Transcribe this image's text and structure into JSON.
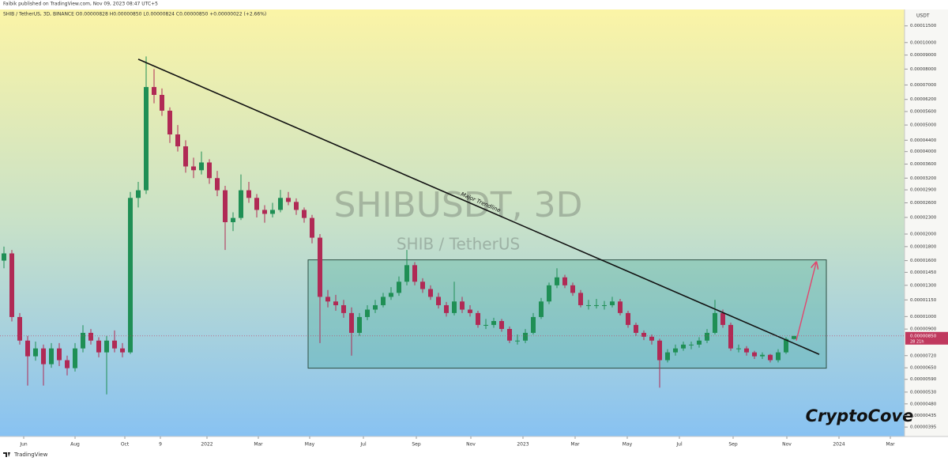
{
  "chart_data": {
    "type": "candlestick",
    "publisher": "Faibik published on TradingView.com, Nov 09, 2023 08:47 UTC+5",
    "legend": "SHIB / TetherUS, 3D, BINANCE O0.00000828 H0.00000850 L0.00000824 C0.00000850 +0.00000022 (+2.66%)",
    "watermark": "SHIBUSDT, 3D",
    "watermark_sub": "SHIB / TetherUS",
    "brand": "CryptoCove",
    "logo": "TradingView",
    "y_axis_unit": "USDT",
    "log_scale": true,
    "up_color": "#1f8f55",
    "down_color": "#b02a55",
    "xlim": [
      -0.5,
      114
    ],
    "ylim": [
      3.65e-06,
      0.000132
    ],
    "xticks": [
      {
        "value": 2.5,
        "label": "Jun"
      },
      {
        "value": 9,
        "label": "Aug"
      },
      {
        "value": 15.3,
        "label": "Oct"
      },
      {
        "value": 19.8,
        "label": "9"
      },
      {
        "value": 25.7,
        "label": "2022"
      },
      {
        "value": 32.2,
        "label": "Mar"
      },
      {
        "value": 38.7,
        "label": "May"
      },
      {
        "value": 45.5,
        "label": "Jul"
      },
      {
        "value": 52.2,
        "label": "Sep"
      },
      {
        "value": 59.1,
        "label": "Nov"
      },
      {
        "value": 65.7,
        "label": "2023"
      },
      {
        "value": 72.3,
        "label": "Mar"
      },
      {
        "value": 78.9,
        "label": "May"
      },
      {
        "value": 85.5,
        "label": "Jul"
      },
      {
        "value": 92.3,
        "label": "Sep"
      },
      {
        "value": 99.1,
        "label": "Nov"
      },
      {
        "value": 105.7,
        "label": "2024"
      },
      {
        "value": 112.2,
        "label": "Mar"
      }
    ],
    "yticks": [
      {
        "value": 0.000115,
        "label": "0.00011500"
      },
      {
        "value": 0.0001,
        "label": "0.00010000"
      },
      {
        "value": 9e-05,
        "label": "0.00009000"
      },
      {
        "value": 8e-05,
        "label": "0.00008000"
      },
      {
        "value": 7e-05,
        "label": "0.00007000"
      },
      {
        "value": 6.2e-05,
        "label": "0.00006200"
      },
      {
        "value": 5.6e-05,
        "label": "0.00005600"
      },
      {
        "value": 5e-05,
        "label": "0.00005000"
      },
      {
        "value": 4.4e-05,
        "label": "0.00004400"
      },
      {
        "value": 4e-05,
        "label": "0.00004000"
      },
      {
        "value": 3.6e-05,
        "label": "0.00003600"
      },
      {
        "value": 3.2e-05,
        "label": "0.00003200"
      },
      {
        "value": 2.9e-05,
        "label": "0.00002900"
      },
      {
        "value": 2.6e-05,
        "label": "0.00002600"
      },
      {
        "value": 2.3e-05,
        "label": "0.00002300"
      },
      {
        "value": 2e-05,
        "label": "0.00002000"
      },
      {
        "value": 1.8e-05,
        "label": "0.00001800"
      },
      {
        "value": 1.6e-05,
        "label": "0.00001600"
      },
      {
        "value": 1.45e-05,
        "label": "0.00001450"
      },
      {
        "value": 1.3e-05,
        "label": "0.00001300"
      },
      {
        "value": 1.15e-05,
        "label": "0.00001150"
      },
      {
        "value": 1e-05,
        "label": "0.00001000"
      },
      {
        "value": 9e-06,
        "label": "0.00000900"
      },
      {
        "value": 7.2e-06,
        "label": "0.00000720"
      },
      {
        "value": 6.5e-06,
        "label": "0.00000650"
      },
      {
        "value": 5.9e-06,
        "label": "0.00000590"
      },
      {
        "value": 5.3e-06,
        "label": "0.00000530"
      },
      {
        "value": 4.8e-06,
        "label": "0.00000480"
      },
      {
        "value": 4.35e-06,
        "label": "0.00000435"
      },
      {
        "value": 3.95e-06,
        "label": "0.00000395"
      }
    ],
    "price_label": {
      "value": 8.5e-06,
      "label": "0.00000850"
    },
    "countdown": "28 21h",
    "trendline": {
      "label": "Major Trendline",
      "x": [
        17,
        103.2
      ],
      "y": [
        8.69e-05,
        7.28e-06
      ]
    },
    "range_box": {
      "x": [
        38.5,
        104.1
      ],
      "y": [
        1.61e-05,
        6.48e-06
      ]
    },
    "arrow": {
      "x": [
        100.3,
        102.8
      ],
      "y": [
        8.17e-06,
        1.57e-05
      ]
    },
    "ohlc": [
      [
        1.6e-05,
        1.8e-05,
        1.5e-05,
        1.7e-05
      ],
      [
        1.7e-05,
        1.75e-05,
        9.6e-06,
        9.96e-06
      ],
      [
        9.96e-06,
        1.03e-05,
        7.9e-06,
        8.17e-06
      ],
      [
        8.17e-06,
        8.5e-06,
        5.6e-06,
        7.16e-06
      ],
      [
        7.16e-06,
        8.1e-06,
        6.9e-06,
        7.65e-06
      ],
      [
        7.65e-06,
        7.9e-06,
        5.6e-06,
        6.7e-06
      ],
      [
        6.7e-06,
        8e-06,
        6.5e-06,
        7.65e-06
      ],
      [
        7.65e-06,
        8e-06,
        6.6e-06,
        6.93e-06
      ],
      [
        6.93e-06,
        7.2e-06,
        6.1e-06,
        6.48e-06
      ],
      [
        6.48e-06,
        8e-06,
        6.3e-06,
        7.65e-06
      ],
      [
        7.65e-06,
        9.3e-06,
        7.4e-06,
        8.72e-06
      ],
      [
        8.72e-06,
        9e-06,
        7.9e-06,
        8.17e-06
      ],
      [
        8.17e-06,
        8.4e-06,
        7.1e-06,
        7.4e-06
      ],
      [
        7.4e-06,
        8.5e-06,
        5.2e-06,
        8.17e-06
      ],
      [
        8.17e-06,
        8.9e-06,
        7.4e-06,
        7.65e-06
      ],
      [
        7.65e-06,
        8e-06,
        7.1e-06,
        7.4e-06
      ],
      [
        7.4e-06,
        2.85e-05,
        7.3e-06,
        2.71e-05
      ],
      [
        2.71e-05,
        3.1e-05,
        2.5e-05,
        2.89e-05
      ],
      [
        2.89e-05,
        8.9e-05,
        2.8e-05,
        6.88e-05
      ],
      [
        6.88e-05,
        8e-05,
        6e-05,
        6.44e-05
      ],
      [
        6.44e-05,
        6.8e-05,
        5.4e-05,
        5.64e-05
      ],
      [
        5.64e-05,
        5.8e-05,
        4.3e-05,
        4.62e-05
      ],
      [
        4.62e-05,
        5e-05,
        4e-05,
        4.18e-05
      ],
      [
        4.18e-05,
        4.4e-05,
        3.35e-05,
        3.53e-05
      ],
      [
        3.53e-05,
        3.8e-05,
        3.2e-05,
        3.42e-05
      ],
      [
        3.42e-05,
        4e-05,
        3.3e-05,
        3.65e-05
      ],
      [
        3.65e-05,
        3.75e-05,
        3.05e-05,
        3.2e-05
      ],
      [
        3.2e-05,
        3.4e-05,
        2.75e-05,
        2.89e-05
      ],
      [
        2.89e-05,
        3e-05,
        1.75e-05,
        2.21e-05
      ],
      [
        2.21e-05,
        2.4e-05,
        2.05e-05,
        2.29e-05
      ],
      [
        2.29e-05,
        3.3e-05,
        2.25e-05,
        2.89e-05
      ],
      [
        2.89e-05,
        3.1e-05,
        2.6e-05,
        2.71e-05
      ],
      [
        2.71e-05,
        2.8e-05,
        2.3e-05,
        2.45e-05
      ],
      [
        2.45e-05,
        2.55e-05,
        2.2e-05,
        2.37e-05
      ],
      [
        2.37e-05,
        2.6e-05,
        2.3e-05,
        2.45e-05
      ],
      [
        2.45e-05,
        2.9e-05,
        2.4e-05,
        2.71e-05
      ],
      [
        2.71e-05,
        2.85e-05,
        2.55e-05,
        2.62e-05
      ],
      [
        2.62e-05,
        2.7e-05,
        2.35e-05,
        2.45e-05
      ],
      [
        2.45e-05,
        2.5e-05,
        2.2e-05,
        2.29e-05
      ],
      [
        2.29e-05,
        2.35e-05,
        1.85e-05,
        1.94e-05
      ],
      [
        1.94e-05,
        2e-05,
        8e-06,
        1.18e-05
      ],
      [
        1.18e-05,
        1.25e-05,
        1.08e-05,
        1.135e-05
      ],
      [
        1.135e-05,
        1.2e-05,
        1.05e-05,
        1.1e-05
      ],
      [
        1.1e-05,
        1.15e-05,
        9.9e-06,
        1.03e-05
      ],
      [
        1.03e-05,
        1.08e-05,
        7.2e-06,
        8.72e-06
      ],
      [
        8.72e-06,
        1.03e-05,
        8.5e-06,
        9.96e-06
      ],
      [
        9.96e-06,
        1.1e-05,
        9.7e-06,
        1.06e-05
      ],
      [
        1.06e-05,
        1.15e-05,
        1.03e-05,
        1.1e-05
      ],
      [
        1.1e-05,
        1.22e-05,
        1.08e-05,
        1.18e-05
      ],
      [
        1.18e-05,
        1.28e-05,
        1.15e-05,
        1.22e-05
      ],
      [
        1.22e-05,
        1.4e-05,
        1.19e-05,
        1.34e-05
      ],
      [
        1.34e-05,
        1.75e-05,
        1.3e-05,
        1.54e-05
      ],
      [
        1.54e-05,
        1.58e-05,
        1.3e-05,
        1.34e-05
      ],
      [
        1.34e-05,
        1.38e-05,
        1.22e-05,
        1.26e-05
      ],
      [
        1.26e-05,
        1.3e-05,
        1.15e-05,
        1.18e-05
      ],
      [
        1.18e-05,
        1.22e-05,
        1.07e-05,
        1.1e-05
      ],
      [
        1.1e-05,
        1.13e-05,
        1e-05,
        1.03e-05
      ],
      [
        1.03e-05,
        1.34e-05,
        1.01e-05,
        1.135e-05
      ],
      [
        1.135e-05,
        1.18e-05,
        1.03e-05,
        1.06e-05
      ],
      [
        1.06e-05,
        1.1e-05,
        1e-05,
        1.03e-05
      ],
      [
        1.03e-05,
        1.05e-05,
        9.1e-06,
        9.32e-06
      ],
      [
        9.32e-06,
        9.8e-06,
        9e-06,
        9.32e-06
      ],
      [
        9.32e-06,
        9.9e-06,
        9.1e-06,
        9.63e-06
      ],
      [
        9.63e-06,
        9.8e-06,
        8.8e-06,
        9.01e-06
      ],
      [
        9.01e-06,
        9.2e-06,
        8e-06,
        8.17e-06
      ],
      [
        8.17e-06,
        8.6e-06,
        7.9e-06,
        8.17e-06
      ],
      [
        8.17e-06,
        9e-06,
        8e-06,
        8.72e-06
      ],
      [
        8.72e-06,
        1.03e-05,
        8.6e-06,
        9.96e-06
      ],
      [
        9.96e-06,
        1.17e-05,
        9.8e-06,
        1.135e-05
      ],
      [
        1.135e-05,
        1.33e-05,
        1.11e-05,
        1.3e-05
      ],
      [
        1.3e-05,
        1.5e-05,
        1.27e-05,
        1.39e-05
      ],
      [
        1.39e-05,
        1.42e-05,
        1.27e-05,
        1.3e-05
      ],
      [
        1.3e-05,
        1.33e-05,
        1.19e-05,
        1.22e-05
      ],
      [
        1.22e-05,
        1.25e-05,
        1.08e-05,
        1.1e-05
      ],
      [
        1.1e-05,
        1.15e-05,
        1.06e-05,
        1.1e-05
      ],
      [
        1.1e-05,
        1.16e-05,
        1.07e-05,
        1.1e-05
      ],
      [
        1.1e-05,
        1.14e-05,
        1.06e-05,
        1.1e-05
      ],
      [
        1.1e-05,
        1.18e-05,
        1.08e-05,
        1.135e-05
      ],
      [
        1.135e-05,
        1.16e-05,
        1.01e-05,
        1.03e-05
      ],
      [
        1.03e-05,
        1.05e-05,
        9.1e-06,
        9.32e-06
      ],
      [
        9.32e-06,
        9.5e-06,
        8.5e-06,
        8.72e-06
      ],
      [
        8.72e-06,
        8.9e-06,
        8.2e-06,
        8.44e-06
      ],
      [
        8.44e-06,
        8.6e-06,
        7.9e-06,
        8.17e-06
      ],
      [
        8.17e-06,
        8.3e-06,
        5.5e-06,
        6.93e-06
      ],
      [
        6.93e-06,
        7.6e-06,
        6.8e-06,
        7.4e-06
      ],
      [
        7.4e-06,
        7.9e-06,
        7.2e-06,
        7.65e-06
      ],
      [
        7.65e-06,
        8.1e-06,
        7.5e-06,
        7.9e-06
      ],
      [
        7.9e-06,
        8.1e-06,
        7.6e-06,
        7.9e-06
      ],
      [
        7.9e-06,
        8.4e-06,
        7.7e-06,
        8.17e-06
      ],
      [
        8.17e-06,
        9e-06,
        8e-06,
        8.72e-06
      ],
      [
        8.72e-06,
        1.15e-05,
        8.6e-06,
        1.03e-05
      ],
      [
        1.03e-05,
        1.06e-05,
        9.1e-06,
        9.32e-06
      ],
      [
        9.32e-06,
        9.5e-06,
        7.5e-06,
        7.65e-06
      ],
      [
        7.65e-06,
        7.9e-06,
        7.4e-06,
        7.65e-06
      ],
      [
        7.65e-06,
        7.8e-06,
        7.2e-06,
        7.4e-06
      ],
      [
        7.4e-06,
        7.5e-06,
        7e-06,
        7.16e-06
      ],
      [
        7.16e-06,
        7.4e-06,
        7e-06,
        7.25e-06
      ],
      [
        7.25e-06,
        7.3e-06,
        6.8e-06,
        6.93e-06
      ],
      [
        6.93e-06,
        7.6e-06,
        6.8e-06,
        7.4e-06
      ],
      [
        7.4e-06,
        8.4e-06,
        7.3e-06,
        8.28e-06
      ],
      [
        8.28e-06,
        8.5e-06,
        8.24e-06,
        8.5e-06
      ]
    ]
  }
}
